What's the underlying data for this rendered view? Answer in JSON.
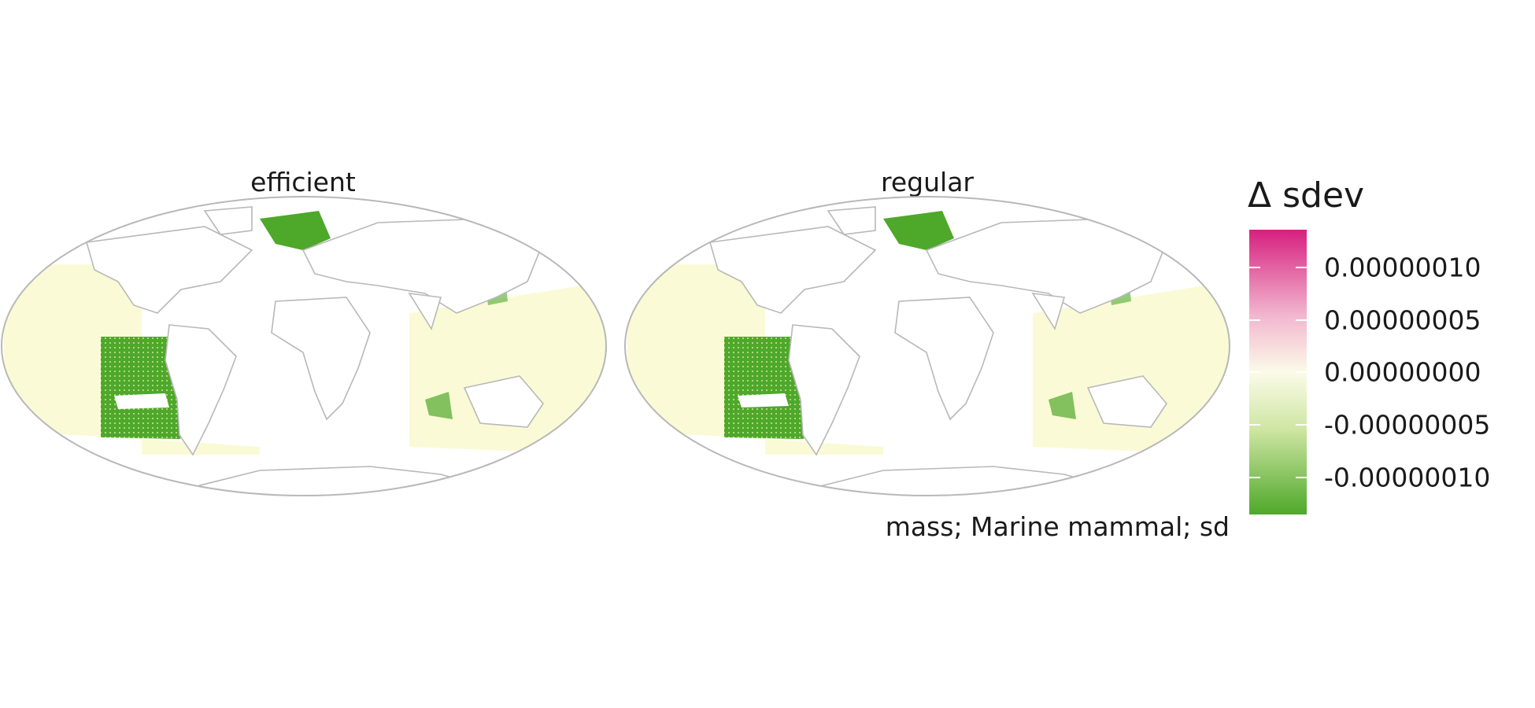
{
  "panels": [
    {
      "title": "efficient"
    },
    {
      "title": "regular"
    }
  ],
  "legend": {
    "title": "Δ sdev",
    "ticks": [
      "0.00000010",
      "0.00000005",
      "0.00000000",
      "-0.00000005",
      "-0.00000010"
    ],
    "colors": {
      "high": "#d6207f",
      "mid": "#fbfbe8",
      "low": "#4ea82a"
    }
  },
  "caption": "mass; Marine mammal; sd",
  "colors": {
    "border": "#b8b8b8",
    "ocean_pale": "#fafbd6",
    "green_strong": "#4ea82a",
    "green_light": "#cfe6a3"
  }
}
